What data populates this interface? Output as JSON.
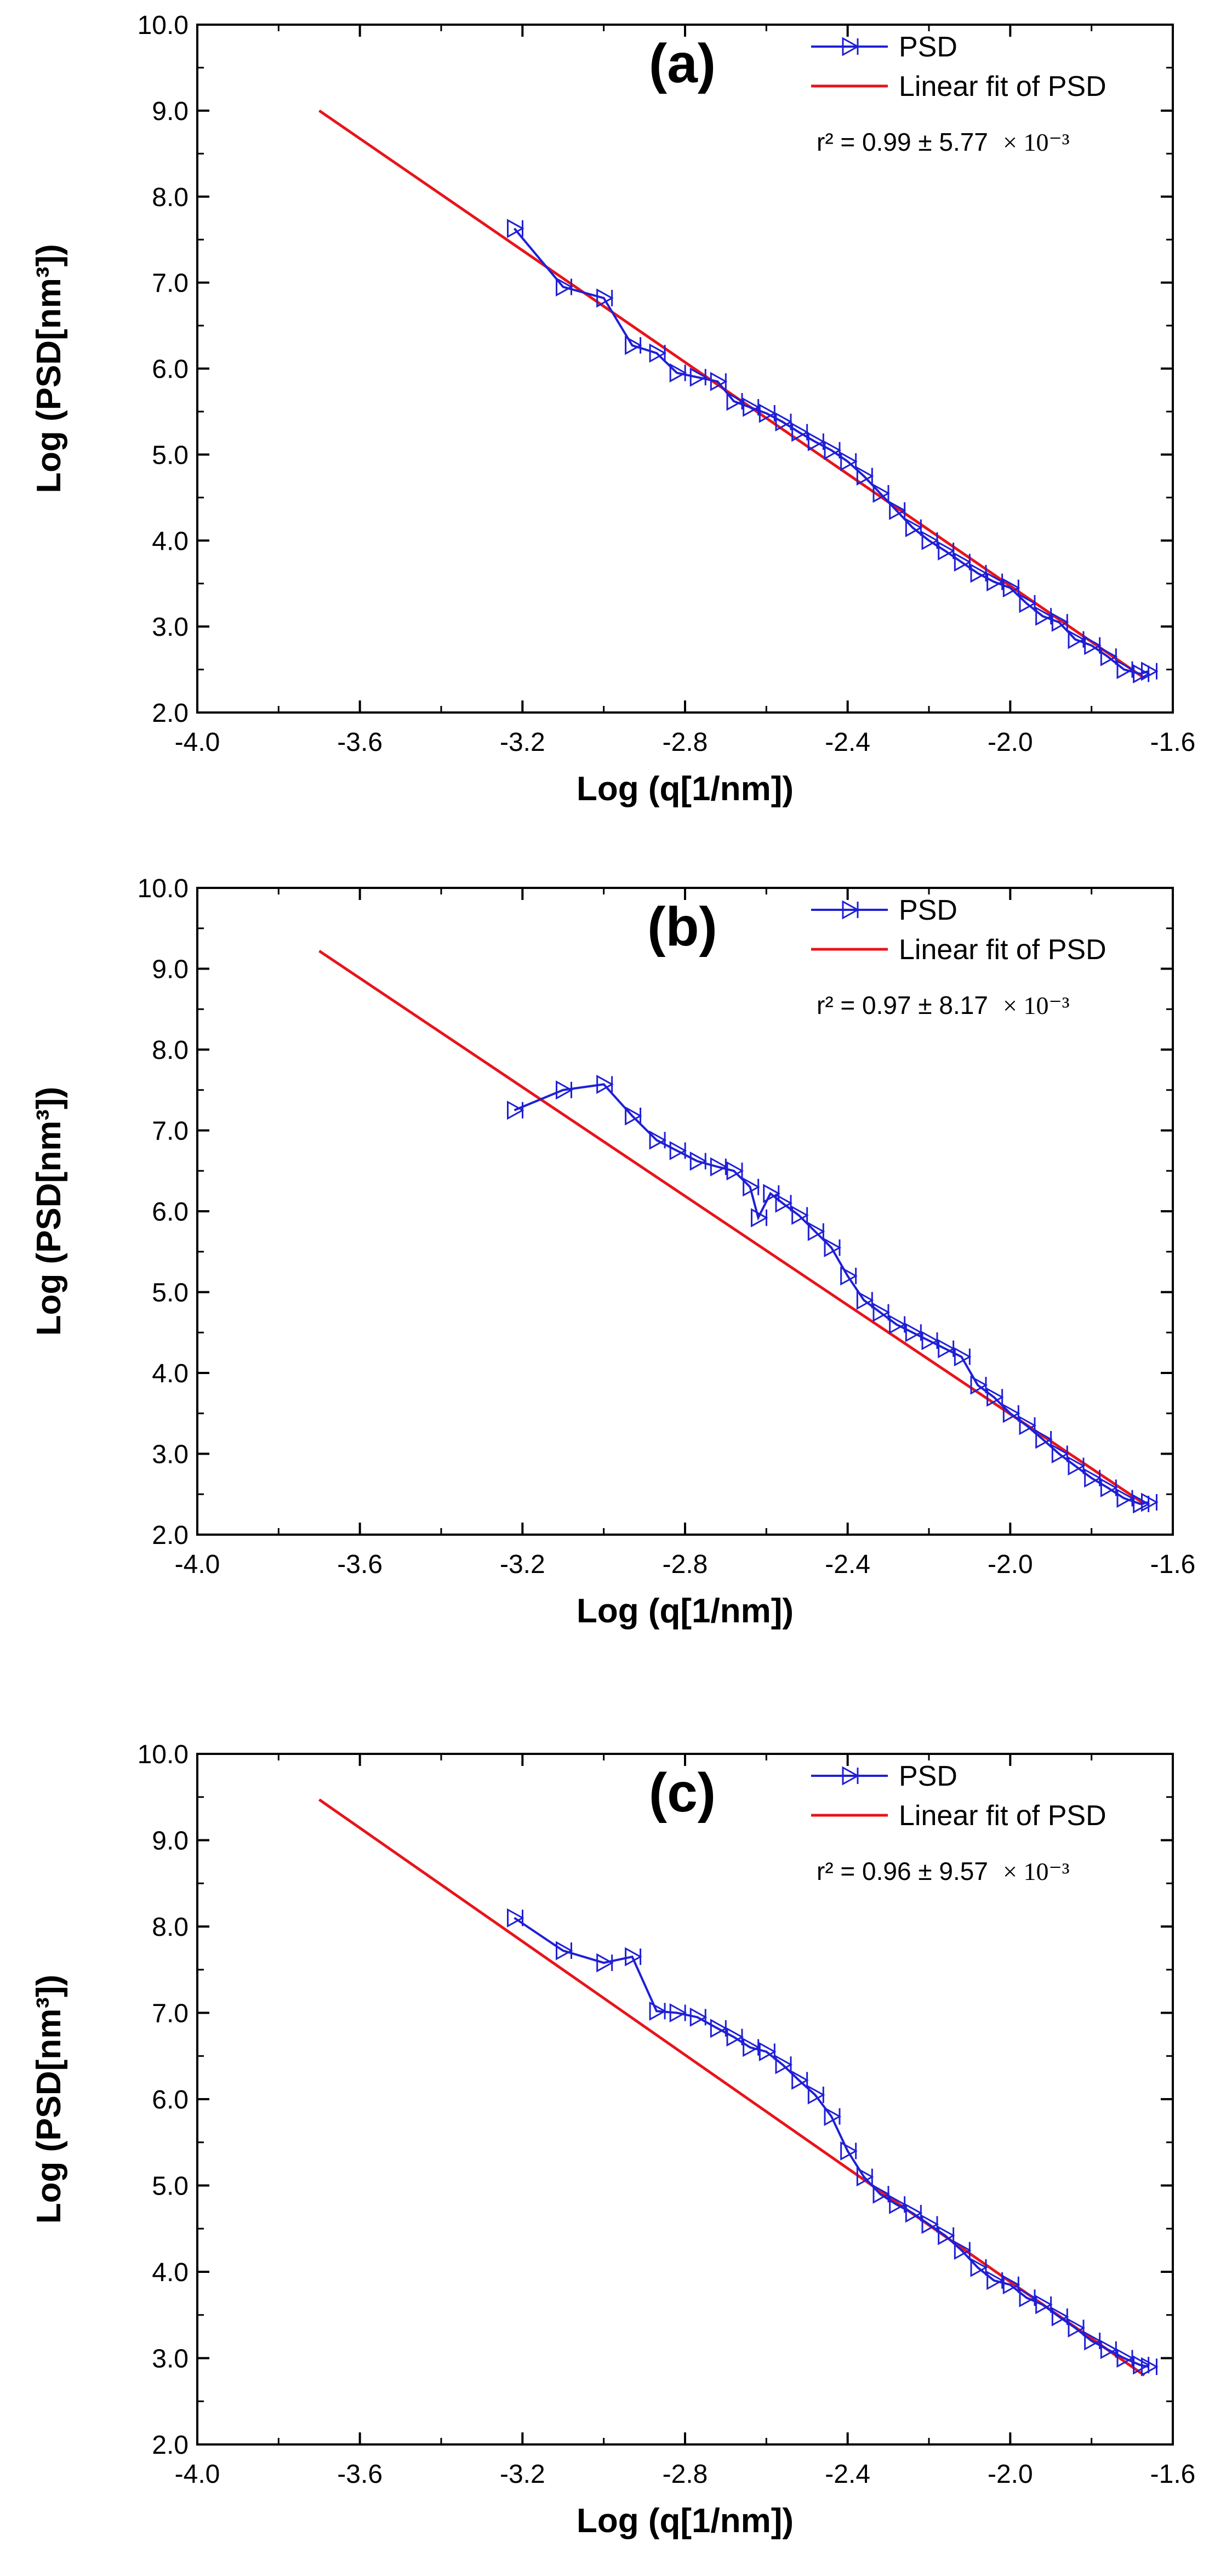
{
  "chart_data": [
    {
      "type": "line",
      "panel_label": "(a)",
      "xlabel": "Log (q[1/nm])",
      "ylabel": "Log (PSD[nm³])",
      "xlim": [
        -4.0,
        -1.6
      ],
      "ylim": [
        2.0,
        10.0
      ],
      "x_ticks": [
        "-4.0",
        "-3.6",
        "-3.2",
        "-2.8",
        "-2.4",
        "-2.0",
        "-1.6"
      ],
      "y_ticks": [
        "2.0",
        "3.0",
        "4.0",
        "5.0",
        "6.0",
        "7.0",
        "8.0",
        "9.0",
        "10.0"
      ],
      "legend": [
        "PSD",
        "Linear fit of PSD"
      ],
      "legend_position": "top-right",
      "r2_text": "r² = 0.99 ± 5.77",
      "r2_sci": "× 10⁻³",
      "colors": {
        "psd": "#1f1fd6",
        "fit": "#e8141b"
      },
      "series": [
        {
          "name": "PSD",
          "x": [
            -3.22,
            -3.1,
            -3.0,
            -2.93,
            -2.87,
            -2.82,
            -2.77,
            -2.72,
            -2.68,
            -2.64,
            -2.6,
            -2.56,
            -2.52,
            -2.48,
            -2.44,
            -2.4,
            -2.36,
            -2.32,
            -2.28,
            -2.24,
            -2.2,
            -2.16,
            -2.12,
            -2.08,
            -2.04,
            -2.0,
            -1.96,
            -1.92,
            -1.88,
            -1.84,
            -1.8,
            -1.76,
            -1.72,
            -1.68,
            -1.66
          ],
          "y": [
            7.63,
            6.95,
            6.82,
            6.27,
            6.18,
            5.95,
            5.9,
            5.85,
            5.62,
            5.55,
            5.48,
            5.38,
            5.26,
            5.15,
            5.05,
            4.92,
            4.75,
            4.55,
            4.35,
            4.15,
            4.0,
            3.88,
            3.75,
            3.62,
            3.52,
            3.45,
            3.27,
            3.12,
            3.05,
            2.85,
            2.78,
            2.65,
            2.5,
            2.45,
            2.48
          ]
        },
        {
          "name": "Linear fit of PSD",
          "x": [
            -3.7,
            -1.67
          ],
          "y": [
            9.0,
            2.4
          ]
        }
      ]
    },
    {
      "type": "line",
      "panel_label": "(b)",
      "xlabel": "Log (q[1/nm])",
      "ylabel": "Log (PSD[nm³])",
      "xlim": [
        -4.0,
        -1.6
      ],
      "ylim": [
        2.0,
        10.0
      ],
      "x_ticks": [
        "-4.0",
        "-3.6",
        "-3.2",
        "-2.8",
        "-2.4",
        "-2.0",
        "-1.6"
      ],
      "y_ticks": [
        "2.0",
        "3.0",
        "4.0",
        "5.0",
        "6.0",
        "7.0",
        "8.0",
        "9.0",
        "10.0"
      ],
      "legend": [
        "PSD",
        "Linear fit of PSD"
      ],
      "legend_position": "top-right",
      "r2_text": "r² = 0.97 ± 8.17",
      "r2_sci": "× 10⁻³",
      "colors": {
        "psd": "#1f1fd6",
        "fit": "#e8141b"
      },
      "series": [
        {
          "name": "PSD",
          "x": [
            -3.22,
            -3.1,
            -3.0,
            -2.93,
            -2.87,
            -2.82,
            -2.77,
            -2.72,
            -2.68,
            -2.64,
            -2.62,
            -2.59,
            -2.56,
            -2.52,
            -2.48,
            -2.44,
            -2.4,
            -2.36,
            -2.32,
            -2.28,
            -2.24,
            -2.2,
            -2.16,
            -2.12,
            -2.08,
            -2.04,
            -2.0,
            -1.96,
            -1.92,
            -1.88,
            -1.84,
            -1.8,
            -1.76,
            -1.72,
            -1.68,
            -1.66
          ],
          "y": [
            7.25,
            7.5,
            7.57,
            7.18,
            6.88,
            6.75,
            6.62,
            6.55,
            6.5,
            6.3,
            5.92,
            6.22,
            6.1,
            5.95,
            5.75,
            5.55,
            5.2,
            4.9,
            4.75,
            4.6,
            4.5,
            4.4,
            4.3,
            4.2,
            3.85,
            3.7,
            3.5,
            3.35,
            3.18,
            3.0,
            2.85,
            2.7,
            2.58,
            2.45,
            2.38,
            2.4
          ]
        },
        {
          "name": "Linear fit of PSD",
          "x": [
            -3.7,
            -1.67
          ],
          "y": [
            9.22,
            2.38
          ]
        }
      ]
    },
    {
      "type": "line",
      "panel_label": "(c)",
      "xlabel": "Log (q[1/nm])",
      "ylabel": "Log (PSD[nm³])",
      "xlim": [
        -4.0,
        -1.6
      ],
      "ylim": [
        2.0,
        10.0
      ],
      "x_ticks": [
        "-4.0",
        "-3.6",
        "-3.2",
        "-2.8",
        "-2.4",
        "-2.0",
        "-1.6"
      ],
      "y_ticks": [
        "2.0",
        "3.0",
        "4.0",
        "5.0",
        "6.0",
        "7.0",
        "8.0",
        "9.0",
        "10.0"
      ],
      "legend": [
        "PSD",
        "Linear fit of PSD"
      ],
      "legend_position": "top-right",
      "r2_text": "r² = 0.96 ± 9.57",
      "r2_sci": "× 10⁻³",
      "colors": {
        "psd": "#1f1fd6",
        "fit": "#e8141b"
      },
      "series": [
        {
          "name": "PSD",
          "x": [
            -3.22,
            -3.1,
            -3.0,
            -2.93,
            -2.87,
            -2.82,
            -2.77,
            -2.72,
            -2.68,
            -2.64,
            -2.6,
            -2.56,
            -2.52,
            -2.48,
            -2.44,
            -2.4,
            -2.36,
            -2.32,
            -2.28,
            -2.24,
            -2.2,
            -2.16,
            -2.12,
            -2.08,
            -2.04,
            -2.0,
            -1.96,
            -1.92,
            -1.88,
            -1.84,
            -1.8,
            -1.76,
            -1.72,
            -1.68,
            -1.66
          ],
          "y": [
            8.1,
            7.72,
            7.58,
            7.65,
            7.02,
            7.0,
            6.95,
            6.82,
            6.72,
            6.6,
            6.55,
            6.4,
            6.22,
            6.05,
            5.8,
            5.4,
            5.1,
            4.9,
            4.78,
            4.68,
            4.55,
            4.42,
            4.25,
            4.05,
            3.9,
            3.85,
            3.7,
            3.62,
            3.48,
            3.35,
            3.2,
            3.1,
            3.0,
            2.92,
            2.9
          ]
        },
        {
          "name": "Linear fit of PSD",
          "x": [
            -3.7,
            -1.67
          ],
          "y": [
            9.47,
            2.8
          ]
        }
      ]
    }
  ]
}
